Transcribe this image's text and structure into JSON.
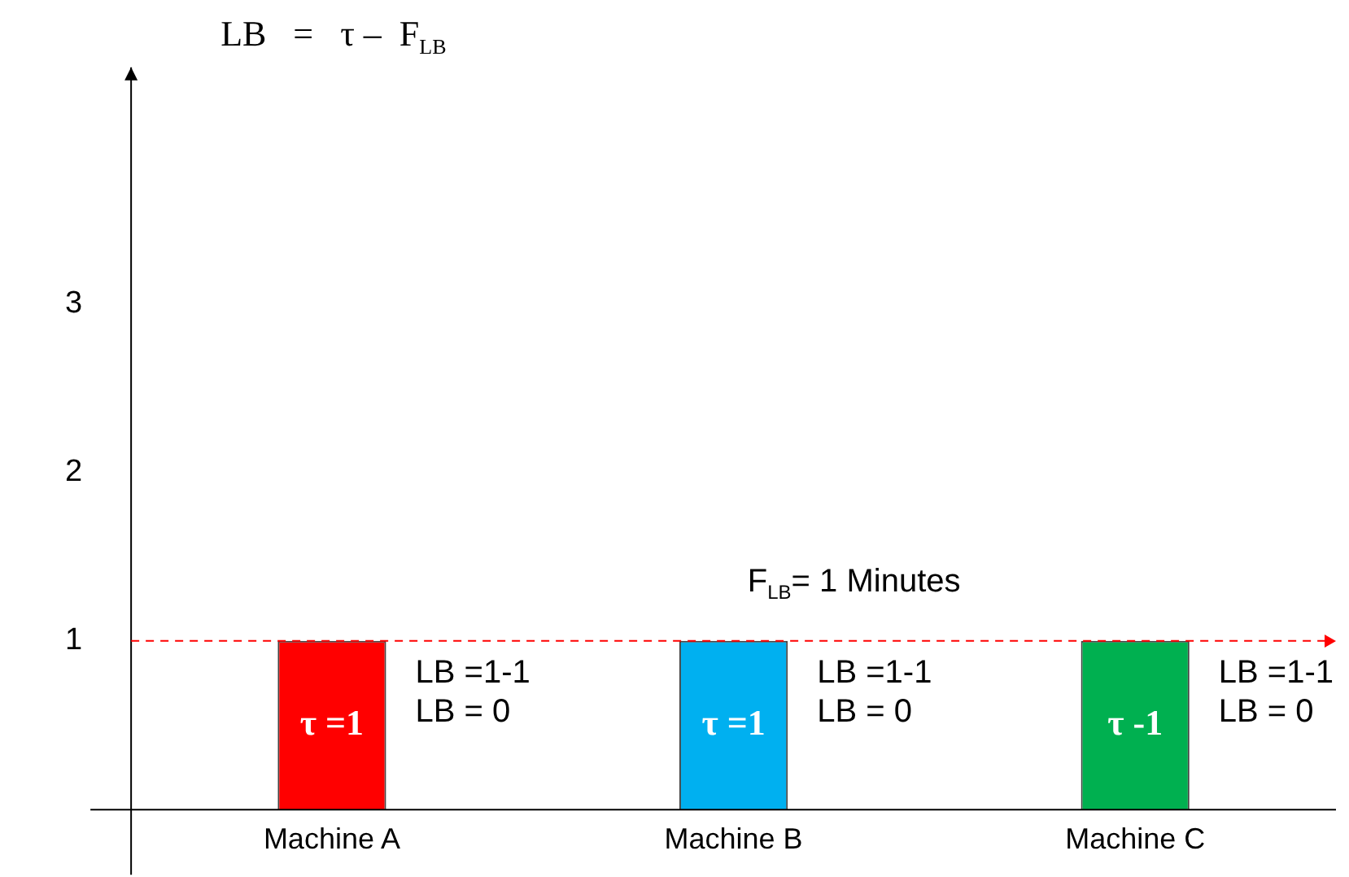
{
  "chart_data": {
    "type": "bar",
    "title": "LB   =   τ –  F$_{LB}$",
    "categories": [
      "Machine A",
      "Machine B",
      "Machine C"
    ],
    "values": [
      1,
      1,
      1
    ],
    "colors": [
      "#ff0000",
      "#00b0f0",
      "#00b050"
    ],
    "ylim": [
      0,
      4.4
    ],
    "yticks": [
      1,
      2,
      3
    ],
    "grid": false,
    "legend": false,
    "ref_lines": [
      {
        "axis": "y",
        "value": 1,
        "label": "F$_{LB}$= 1 Minutes",
        "color": "#ff0000",
        "line_style": "dashed"
      }
    ],
    "annotations": [
      "τ =1",
      "LB =1-1",
      "LB = 0",
      "τ =1",
      "LB =1-1",
      "LB = 0",
      "τ -1",
      "LB =1-1",
      "LB = 0"
    ]
  }
}
